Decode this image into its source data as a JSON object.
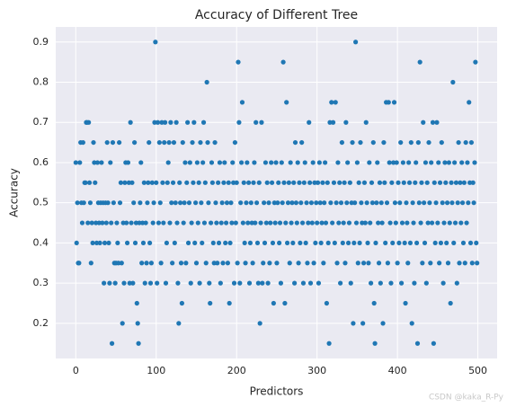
{
  "chart_data": {
    "type": "scatter",
    "title": "Accuracy of Different Tree",
    "xlabel": "Predictors",
    "ylabel": "Accuracy",
    "watermark": "CSDN @kaka_R-Py",
    "color": "#1f77b4",
    "grid": true,
    "xlim": [
      -24.95,
      523.95
    ],
    "ylim": [
      0.1125,
      0.9375
    ],
    "xticks": [
      0,
      100,
      200,
      300,
      400,
      500
    ],
    "yticks": [
      0.2,
      0.3,
      0.4,
      0.5,
      0.6,
      0.7,
      0.8,
      0.9
    ],
    "x": [
      0,
      1,
      2,
      3,
      4,
      5,
      6,
      7,
      8,
      9,
      10,
      11,
      12,
      13,
      14,
      15,
      16,
      17,
      18,
      19,
      20,
      21,
      22,
      23,
      24,
      25,
      26,
      27,
      28,
      29,
      30,
      31,
      32,
      33,
      34,
      35,
      36,
      37,
      38,
      39,
      40,
      41,
      42,
      43,
      44,
      45,
      46,
      47,
      48,
      49,
      50,
      51,
      52,
      53,
      54,
      55,
      56,
      57,
      58,
      59,
      60,
      61,
      62,
      63,
      64,
      65,
      66,
      67,
      68,
      69,
      70,
      71,
      72,
      73,
      74,
      75,
      76,
      77,
      78,
      79,
      80,
      81,
      82,
      83,
      84,
      85,
      86,
      87,
      88,
      89,
      90,
      91,
      92,
      93,
      94,
      95,
      96,
      97,
      98,
      99,
      100,
      101,
      102,
      103,
      104,
      105,
      106,
      107,
      108,
      109,
      110,
      111,
      112,
      113,
      114,
      115,
      116,
      117,
      118,
      119,
      120,
      121,
      122,
      123,
      124,
      125,
      126,
      127,
      128,
      129,
      130,
      131,
      132,
      133,
      134,
      135,
      136,
      137,
      138,
      139,
      140,
      141,
      142,
      143,
      144,
      145,
      146,
      147,
      148,
      149,
      150,
      151,
      152,
      153,
      154,
      155,
      156,
      157,
      158,
      159,
      160,
      161,
      162,
      163,
      164,
      165,
      166,
      167,
      168,
      169,
      170,
      171,
      172,
      173,
      174,
      175,
      176,
      177,
      178,
      179,
      180,
      181,
      182,
      183,
      184,
      185,
      186,
      187,
      188,
      189,
      190,
      191,
      192,
      193,
      194,
      195,
      196,
      197,
      198,
      199,
      200,
      201,
      202,
      203,
      204,
      205,
      206,
      207,
      208,
      209,
      210,
      211,
      212,
      213,
      214,
      215,
      216,
      217,
      218,
      219,
      220,
      221,
      222,
      223,
      224,
      225,
      226,
      227,
      228,
      229,
      230,
      231,
      232,
      233,
      234,
      235,
      236,
      237,
      238,
      239,
      240,
      241,
      242,
      243,
      244,
      245,
      246,
      247,
      248,
      249,
      250,
      251,
      252,
      253,
      254,
      255,
      256,
      257,
      258,
      259,
      260,
      261,
      262,
      263,
      264,
      265,
      266,
      267,
      268,
      269,
      270,
      271,
      272,
      273,
      274,
      275,
      276,
      277,
      278,
      279,
      280,
      281,
      282,
      283,
      284,
      285,
      286,
      287,
      288,
      289,
      290,
      291,
      292,
      293,
      294,
      295,
      296,
      297,
      298,
      299,
      300,
      301,
      302,
      303,
      304,
      305,
      306,
      307,
      308,
      309,
      310,
      311,
      312,
      313,
      314,
      315,
      316,
      317,
      318,
      319,
      320,
      321,
      322,
      323,
      324,
      325,
      326,
      327,
      328,
      329,
      330,
      331,
      332,
      333,
      334,
      335,
      336,
      337,
      338,
      339,
      340,
      341,
      342,
      343,
      344,
      345,
      346,
      347,
      348,
      349,
      350,
      351,
      352,
      353,
      354,
      355,
      356,
      357,
      358,
      359,
      360,
      361,
      362,
      363,
      364,
      365,
      366,
      367,
      368,
      369,
      370,
      371,
      372,
      373,
      374,
      375,
      376,
      377,
      378,
      379,
      380,
      381,
      382,
      383,
      384,
      385,
      386,
      387,
      388,
      389,
      390,
      391,
      392,
      393,
      394,
      395,
      396,
      397,
      398,
      399,
      400,
      401,
      402,
      403,
      404,
      405,
      406,
      407,
      408,
      409,
      410,
      411,
      412,
      413,
      414,
      415,
      416,
      417,
      418,
      419,
      420,
      421,
      422,
      423,
      424,
      425,
      426,
      427,
      428,
      429,
      430,
      431,
      432,
      433,
      434,
      435,
      436,
      437,
      438,
      439,
      440,
      441,
      442,
      443,
      444,
      445,
      446,
      447,
      448,
      449,
      450,
      451,
      452,
      453,
      454,
      455,
      456,
      457,
      458,
      459,
      460,
      461,
      462,
      463,
      464,
      465,
      466,
      467,
      468,
      469,
      470,
      471,
      472,
      473,
      474,
      475,
      476,
      477,
      478,
      479,
      480,
      481,
      482,
      483,
      484,
      485,
      486,
      487,
      488,
      489,
      490,
      491,
      492,
      493,
      494,
      495,
      496,
      497,
      498,
      499
    ],
    "values": [
      0.6,
      0.4,
      0.5,
      0.35,
      0.35,
      0.6,
      0.65,
      0.5,
      0.45,
      0.65,
      0.5,
      0.55,
      0.55,
      0.7,
      0.7,
      0.45,
      0.7,
      0.55,
      0.5,
      0.35,
      0.45,
      0.4,
      0.65,
      0.6,
      0.55,
      0.45,
      0.4,
      0.6,
      0.5,
      0.45,
      0.4,
      0.5,
      0.6,
      0.45,
      0.5,
      0.3,
      0.4,
      0.5,
      0.45,
      0.65,
      0.5,
      0.4,
      0.3,
      0.6,
      0.45,
      0.15,
      0.65,
      0.5,
      0.35,
      0.3,
      0.35,
      0.45,
      0.4,
      0.35,
      0.65,
      0.5,
      0.55,
      0.35,
      0.2,
      0.45,
      0.3,
      0.55,
      0.6,
      0.45,
      0.4,
      0.6,
      0.55,
      0.3,
      0.7,
      0.45,
      0.55,
      0.3,
      0.5,
      0.65,
      0.4,
      0.45,
      0.25,
      0.2,
      0.15,
      0.45,
      0.5,
      0.6,
      0.35,
      0.45,
      0.4,
      0.55,
      0.3,
      0.45,
      0.35,
      0.5,
      0.55,
      0.65,
      0.4,
      0.3,
      0.35,
      0.55,
      0.45,
      0.5,
      0.7,
      0.9,
      0.55,
      0.3,
      0.7,
      0.45,
      0.65,
      0.5,
      0.35,
      0.7,
      0.55,
      0.45,
      0.65,
      0.7,
      0.3,
      0.4,
      0.55,
      0.6,
      0.65,
      0.45,
      0.7,
      0.5,
      0.35,
      0.55,
      0.65,
      0.4,
      0.5,
      0.7,
      0.45,
      0.3,
      0.2,
      0.55,
      0.5,
      0.35,
      0.25,
      0.65,
      0.45,
      0.5,
      0.6,
      0.35,
      0.55,
      0.7,
      0.4,
      0.5,
      0.6,
      0.3,
      0.45,
      0.65,
      0.55,
      0.7,
      0.4,
      0.5,
      0.35,
      0.6,
      0.45,
      0.55,
      0.3,
      0.65,
      0.5,
      0.4,
      0.6,
      0.7,
      0.45,
      0.55,
      0.35,
      0.8,
      0.65,
      0.5,
      0.3,
      0.25,
      0.45,
      0.6,
      0.55,
      0.4,
      0.35,
      0.65,
      0.5,
      0.45,
      0.35,
      0.55,
      0.4,
      0.6,
      0.3,
      0.45,
      0.5,
      0.35,
      0.55,
      0.6,
      0.4,
      0.45,
      0.5,
      0.35,
      0.55,
      0.25,
      0.4,
      0.5,
      0.45,
      0.6,
      0.55,
      0.3,
      0.65,
      0.45,
      0.55,
      0.35,
      0.85,
      0.7,
      0.3,
      0.5,
      0.6,
      0.75,
      0.45,
      0.55,
      0.4,
      0.35,
      0.5,
      0.6,
      0.45,
      0.55,
      0.3,
      0.4,
      0.5,
      0.45,
      0.35,
      0.55,
      0.6,
      0.45,
      0.7,
      0.5,
      0.4,
      0.3,
      0.55,
      0.2,
      0.45,
      0.7,
      0.3,
      0.35,
      0.5,
      0.4,
      0.6,
      0.45,
      0.55,
      0.3,
      0.5,
      0.35,
      0.45,
      0.6,
      0.55,
      0.4,
      0.25,
      0.5,
      0.45,
      0.6,
      0.35,
      0.5,
      0.55,
      0.4,
      0.45,
      0.3,
      0.6,
      0.5,
      0.85,
      0.55,
      0.25,
      0.45,
      0.75,
      0.4,
      0.5,
      0.55,
      0.35,
      0.6,
      0.45,
      0.5,
      0.4,
      0.55,
      0.3,
      0.65,
      0.5,
      0.45,
      0.6,
      0.35,
      0.55,
      0.4,
      0.5,
      0.65,
      0.45,
      0.3,
      0.55,
      0.6,
      0.4,
      0.5,
      0.35,
      0.45,
      0.7,
      0.55,
      0.3,
      0.5,
      0.45,
      0.6,
      0.35,
      0.55,
      0.4,
      0.5,
      0.45,
      0.55,
      0.3,
      0.6,
      0.5,
      0.4,
      0.45,
      0.55,
      0.35,
      0.5,
      0.6,
      0.45,
      0.25,
      0.55,
      0.4,
      0.15,
      0.7,
      0.5,
      0.75,
      0.45,
      0.7,
      0.55,
      0.4,
      0.75,
      0.5,
      0.35,
      0.6,
      0.45,
      0.55,
      0.3,
      0.5,
      0.65,
      0.4,
      0.45,
      0.55,
      0.35,
      0.7,
      0.5,
      0.6,
      0.4,
      0.45,
      0.55,
      0.3,
      0.5,
      0.65,
      0.2,
      0.4,
      0.5,
      0.9,
      0.45,
      0.6,
      0.35,
      0.55,
      0.4,
      0.65,
      0.5,
      0.45,
      0.2,
      0.35,
      0.55,
      0.45,
      0.7,
      0.5,
      0.4,
      0.35,
      0.6,
      0.45,
      0.3,
      0.55,
      0.5,
      0.65,
      0.25,
      0.15,
      0.4,
      0.5,
      0.6,
      0.45,
      0.35,
      0.55,
      0.3,
      0.5,
      0.45,
      0.2,
      0.65,
      0.55,
      0.4,
      0.75,
      0.5,
      0.35,
      0.75,
      0.6,
      0.45,
      0.3,
      0.55,
      0.4,
      0.6,
      0.75,
      0.5,
      0.45,
      0.6,
      0.35,
      0.55,
      0.4,
      0.5,
      0.65,
      0.3,
      0.45,
      0.6,
      0.55,
      0.4,
      0.25,
      0.5,
      0.45,
      0.35,
      0.6,
      0.55,
      0.4,
      0.65,
      0.2,
      0.5,
      0.45,
      0.3,
      0.55,
      0.6,
      0.4,
      0.15,
      0.65,
      0.5,
      0.85,
      0.45,
      0.55,
      0.35,
      0.7,
      0.5,
      0.4,
      0.6,
      0.3,
      0.55,
      0.45,
      0.65,
      0.5,
      0.35,
      0.6,
      0.45,
      0.7,
      0.15,
      0.55,
      0.4,
      0.5,
      0.7,
      0.45,
      0.6,
      0.35,
      0.55,
      0.4,
      0.65,
      0.5,
      0.3,
      0.45,
      0.6,
      0.55,
      0.4,
      0.5,
      0.35,
      0.6,
      0.45,
      0.25,
      0.55,
      0.5,
      0.8,
      0.4,
      0.6,
      0.45,
      0.55,
      0.3,
      0.5,
      0.65,
      0.35,
      0.55,
      0.45,
      0.6,
      0.5,
      0.4,
      0.55,
      0.35,
      0.65,
      0.45,
      0.6,
      0.5,
      0.75,
      0.55,
      0.4,
      0.65,
      0.35,
      0.55,
      0.5,
      0.6,
      0.85,
      0.4,
      0.35
    ]
  }
}
